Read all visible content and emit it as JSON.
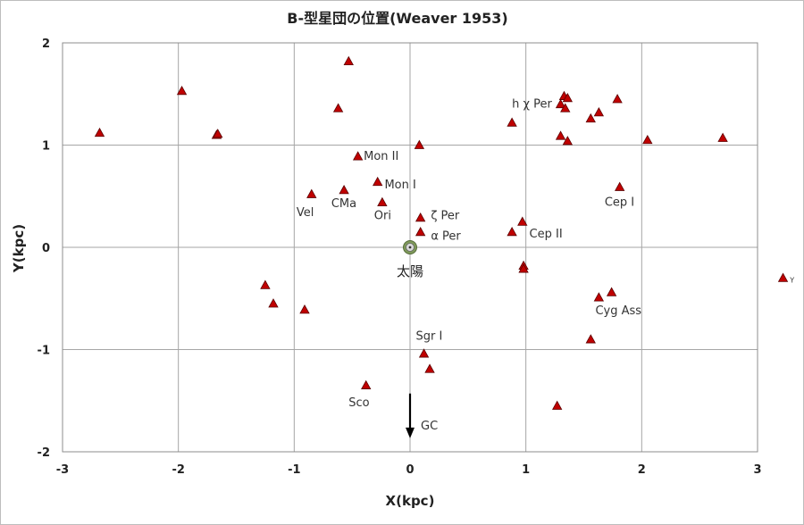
{
  "chart_data": {
    "type": "scatter",
    "title": "B-型星団の位置(Weaver 1953)",
    "xlabel": "X(kpc)",
    "ylabel": "Y(kpc)",
    "xlim": [
      -3,
      3
    ],
    "ylim": [
      -2,
      2
    ],
    "xticks": [
      "-3",
      "-2",
      "-1",
      "0",
      "1",
      "2",
      "3"
    ],
    "yticks": [
      "-2",
      "-1",
      "0",
      "1",
      "2"
    ],
    "grid": true,
    "marker_color": "#c00000",
    "points": [
      {
        "x": -2.68,
        "y": 1.12
      },
      {
        "x": -1.97,
        "y": 1.53
      },
      {
        "x": -1.67,
        "y": 1.1
      },
      {
        "x": -1.66,
        "y": 1.11
      },
      {
        "x": -0.53,
        "y": 1.82
      },
      {
        "x": -0.62,
        "y": 1.36
      },
      {
        "x": -0.45,
        "y": 0.89
      },
      {
        "x": -0.28,
        "y": 0.64
      },
      {
        "x": -0.85,
        "y": 0.52
      },
      {
        "x": -0.57,
        "y": 0.56
      },
      {
        "x": -0.24,
        "y": 0.44
      },
      {
        "x": 0.08,
        "y": 1.0
      },
      {
        "x": 0.09,
        "y": 0.29
      },
      {
        "x": 0.09,
        "y": 0.15
      },
      {
        "x": 0.88,
        "y": 1.22
      },
      {
        "x": 1.3,
        "y": 1.4
      },
      {
        "x": 1.33,
        "y": 1.48
      },
      {
        "x": 1.36,
        "y": 1.46
      },
      {
        "x": 1.34,
        "y": 1.36
      },
      {
        "x": 1.3,
        "y": 1.09
      },
      {
        "x": 1.36,
        "y": 1.04
      },
      {
        "x": 1.56,
        "y": 1.26
      },
      {
        "x": 1.63,
        "y": 1.32
      },
      {
        "x": 1.79,
        "y": 1.45
      },
      {
        "x": 2.05,
        "y": 1.05
      },
      {
        "x": 2.7,
        "y": 1.07
      },
      {
        "x": 1.81,
        "y": 0.59
      },
      {
        "x": 0.97,
        "y": 0.25
      },
      {
        "x": 0.88,
        "y": 0.15
      },
      {
        "x": 0.98,
        "y": -0.18
      },
      {
        "x": 0.98,
        "y": -0.21
      },
      {
        "x": 1.74,
        "y": -0.44
      },
      {
        "x": 1.63,
        "y": -0.49
      },
      {
        "x": 1.56,
        "y": -0.9
      },
      {
        "x": 1.27,
        "y": -1.55
      },
      {
        "x": 0.12,
        "y": -1.04
      },
      {
        "x": 0.17,
        "y": -1.19
      },
      {
        "x": -0.38,
        "y": -1.35
      },
      {
        "x": -1.25,
        "y": -0.37
      },
      {
        "x": -1.18,
        "y": -0.55
      },
      {
        "x": -0.91,
        "y": -0.61
      },
      {
        "x": 3.22,
        "y": -0.3
      }
    ],
    "sun": {
      "x": 0,
      "y": 0,
      "label": "太陽"
    },
    "gc_arrow": {
      "x": 0,
      "y_from": -1.43,
      "y_to": -1.85,
      "label": "GC"
    },
    "annotations": [
      {
        "text": "Mon II",
        "x": -0.4,
        "y": 0.89
      },
      {
        "text": "Mon I",
        "x": -0.22,
        "y": 0.61
      },
      {
        "text": "Vel",
        "x": -0.98,
        "y": 0.34
      },
      {
        "text": "CMa",
        "x": -0.68,
        "y": 0.43
      },
      {
        "text": "Ori",
        "x": -0.31,
        "y": 0.31
      },
      {
        "text": "ζ Per",
        "x": 0.18,
        "y": 0.31
      },
      {
        "text": "α Per",
        "x": 0.18,
        "y": 0.11
      },
      {
        "text": "h χ Per",
        "x": 0.88,
        "y": 1.4
      },
      {
        "text": "Cep I",
        "x": 1.68,
        "y": 0.44
      },
      {
        "text": "Cep II",
        "x": 1.03,
        "y": 0.13
      },
      {
        "text": "Cyg Ass",
        "x": 1.6,
        "y": -0.62
      },
      {
        "text": "Sgr I",
        "x": 0.05,
        "y": -0.87
      },
      {
        "text": "Sco",
        "x": -0.53,
        "y": -1.52
      },
      {
        "text": "Y",
        "x": 3.28,
        "y": -0.31
      }
    ]
  }
}
